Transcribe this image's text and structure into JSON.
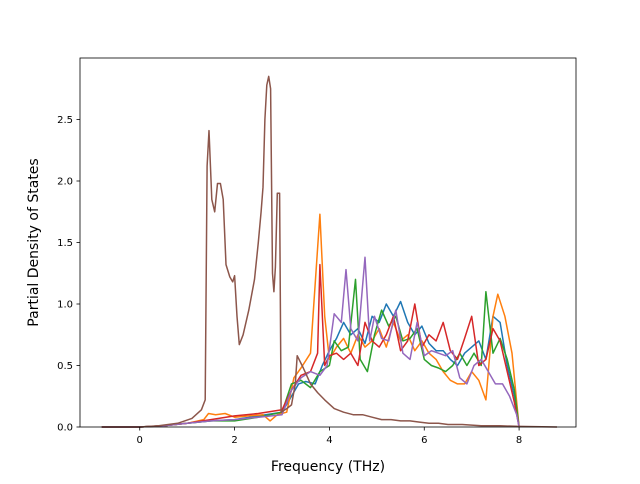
{
  "chart_data": {
    "type": "line",
    "title": "",
    "xlabel": "Frequency (THz)",
    "ylabel": "Partial Density of States",
    "xlim": [
      -1.26,
      9.2
    ],
    "ylim": [
      0.0,
      3.0
    ],
    "xticks": [
      0,
      2,
      4,
      6,
      8
    ],
    "yticks": [
      0.0,
      0.5,
      1.0,
      1.5,
      2.0,
      2.5
    ],
    "ytick_labels": [
      "0.0",
      "0.5",
      "1.0",
      "1.5",
      "2.0",
      "2.5"
    ],
    "grid": false,
    "legend": "none",
    "series": [
      {
        "color": "#1f77b4",
        "points": [
          [
            -0.8,
            0
          ],
          [
            0,
            0
          ],
          [
            0.5,
            0.01
          ],
          [
            1.0,
            0.03
          ],
          [
            1.5,
            0.05
          ],
          [
            2.0,
            0.06
          ],
          [
            2.5,
            0.09
          ],
          [
            3.0,
            0.12
          ],
          [
            3.2,
            0.25
          ],
          [
            3.35,
            0.35
          ],
          [
            3.5,
            0.37
          ],
          [
            3.7,
            0.35
          ],
          [
            3.85,
            0.5
          ],
          [
            4.0,
            0.62
          ],
          [
            4.15,
            0.72
          ],
          [
            4.3,
            0.85
          ],
          [
            4.45,
            0.75
          ],
          [
            4.6,
            0.8
          ],
          [
            4.75,
            0.68
          ],
          [
            4.9,
            0.9
          ],
          [
            5.05,
            0.85
          ],
          [
            5.2,
            1.0
          ],
          [
            5.35,
            0.9
          ],
          [
            5.5,
            1.02
          ],
          [
            5.65,
            0.85
          ],
          [
            5.8,
            0.75
          ],
          [
            5.95,
            0.82
          ],
          [
            6.1,
            0.68
          ],
          [
            6.25,
            0.62
          ],
          [
            6.4,
            0.62
          ],
          [
            6.55,
            0.55
          ],
          [
            6.7,
            0.5
          ],
          [
            6.85,
            0.6
          ],
          [
            7.0,
            0.65
          ],
          [
            7.15,
            0.7
          ],
          [
            7.3,
            0.55
          ],
          [
            7.45,
            0.9
          ],
          [
            7.6,
            0.85
          ],
          [
            7.75,
            0.5
          ],
          [
            7.9,
            0.25
          ],
          [
            8.0,
            0
          ]
        ]
      },
      {
        "color": "#ff7f0e",
        "points": [
          [
            -0.8,
            0
          ],
          [
            0,
            0
          ],
          [
            0.5,
            0.01
          ],
          [
            1.0,
            0.03
          ],
          [
            1.35,
            0.06
          ],
          [
            1.45,
            0.11
          ],
          [
            1.6,
            0.1
          ],
          [
            1.8,
            0.11
          ],
          [
            2.0,
            0.08
          ],
          [
            2.3,
            0.09
          ],
          [
            2.6,
            0.1
          ],
          [
            2.75,
            0.05
          ],
          [
            2.9,
            0.1
          ],
          [
            3.1,
            0.12
          ],
          [
            3.25,
            0.4
          ],
          [
            3.4,
            0.48
          ],
          [
            3.6,
            0.6
          ],
          [
            3.8,
            1.73
          ],
          [
            3.9,
            0.9
          ],
          [
            4.0,
            0.55
          ],
          [
            4.15,
            0.65
          ],
          [
            4.3,
            0.72
          ],
          [
            4.45,
            0.6
          ],
          [
            4.6,
            0.75
          ],
          [
            4.75,
            0.65
          ],
          [
            4.9,
            0.7
          ],
          [
            5.05,
            0.8
          ],
          [
            5.2,
            0.65
          ],
          [
            5.35,
            0.85
          ],
          [
            5.5,
            0.7
          ],
          [
            5.65,
            0.75
          ],
          [
            5.8,
            0.62
          ],
          [
            5.95,
            0.7
          ],
          [
            6.1,
            0.6
          ],
          [
            6.25,
            0.55
          ],
          [
            6.4,
            0.45
          ],
          [
            6.55,
            0.38
          ],
          [
            6.7,
            0.35
          ],
          [
            6.85,
            0.35
          ],
          [
            7.0,
            0.45
          ],
          [
            7.15,
            0.38
          ],
          [
            7.3,
            0.22
          ],
          [
            7.45,
            0.9
          ],
          [
            7.55,
            1.08
          ],
          [
            7.7,
            0.9
          ],
          [
            7.85,
            0.6
          ],
          [
            8.0,
            0
          ]
        ]
      },
      {
        "color": "#2ca02c",
        "points": [
          [
            -0.8,
            0
          ],
          [
            0,
            0
          ],
          [
            0.5,
            0.01
          ],
          [
            1.0,
            0.03
          ],
          [
            1.5,
            0.05
          ],
          [
            2.0,
            0.05
          ],
          [
            2.5,
            0.08
          ],
          [
            3.0,
            0.12
          ],
          [
            3.2,
            0.35
          ],
          [
            3.4,
            0.38
          ],
          [
            3.6,
            0.32
          ],
          [
            3.8,
            0.45
          ],
          [
            4.0,
            0.5
          ],
          [
            4.1,
            0.7
          ],
          [
            4.25,
            0.62
          ],
          [
            4.4,
            0.65
          ],
          [
            4.55,
            1.2
          ],
          [
            4.65,
            0.55
          ],
          [
            4.8,
            0.45
          ],
          [
            4.95,
            0.75
          ],
          [
            5.1,
            0.95
          ],
          [
            5.25,
            0.82
          ],
          [
            5.4,
            0.9
          ],
          [
            5.55,
            0.7
          ],
          [
            5.7,
            0.72
          ],
          [
            5.85,
            0.8
          ],
          [
            6.0,
            0.55
          ],
          [
            6.15,
            0.5
          ],
          [
            6.3,
            0.48
          ],
          [
            6.45,
            0.45
          ],
          [
            6.6,
            0.5
          ],
          [
            6.75,
            0.6
          ],
          [
            6.9,
            0.5
          ],
          [
            7.05,
            0.6
          ],
          [
            7.2,
            0.5
          ],
          [
            7.3,
            1.1
          ],
          [
            7.45,
            0.6
          ],
          [
            7.6,
            0.72
          ],
          [
            7.75,
            0.55
          ],
          [
            7.9,
            0.3
          ],
          [
            8.0,
            0
          ]
        ]
      },
      {
        "color": "#d62728",
        "points": [
          [
            -0.8,
            0
          ],
          [
            0,
            0
          ],
          [
            0.5,
            0.01
          ],
          [
            1.0,
            0.03
          ],
          [
            1.5,
            0.06
          ],
          [
            2.0,
            0.09
          ],
          [
            2.5,
            0.11
          ],
          [
            3.0,
            0.14
          ],
          [
            3.2,
            0.3
          ],
          [
            3.4,
            0.42
          ],
          [
            3.6,
            0.45
          ],
          [
            3.75,
            0.6
          ],
          [
            3.8,
            1.32
          ],
          [
            3.9,
            0.5
          ],
          [
            4.0,
            0.58
          ],
          [
            4.15,
            0.6
          ],
          [
            4.3,
            0.55
          ],
          [
            4.45,
            0.6
          ],
          [
            4.6,
            0.5
          ],
          [
            4.75,
            0.85
          ],
          [
            4.9,
            0.7
          ],
          [
            5.05,
            0.65
          ],
          [
            5.2,
            0.75
          ],
          [
            5.35,
            0.9
          ],
          [
            5.5,
            0.62
          ],
          [
            5.65,
            0.7
          ],
          [
            5.8,
            1.0
          ],
          [
            5.95,
            0.65
          ],
          [
            6.1,
            0.75
          ],
          [
            6.25,
            0.7
          ],
          [
            6.4,
            0.85
          ],
          [
            6.55,
            0.62
          ],
          [
            6.7,
            0.55
          ],
          [
            6.85,
            0.72
          ],
          [
            7.0,
            0.9
          ],
          [
            7.15,
            0.5
          ],
          [
            7.3,
            0.55
          ],
          [
            7.45,
            0.8
          ],
          [
            7.6,
            0.7
          ],
          [
            7.75,
            0.45
          ],
          [
            7.9,
            0.2
          ],
          [
            8.0,
            0
          ]
        ]
      },
      {
        "color": "#9467bd",
        "points": [
          [
            -0.8,
            0
          ],
          [
            0,
            0
          ],
          [
            0.5,
            0.01
          ],
          [
            1.0,
            0.03
          ],
          [
            1.5,
            0.05
          ],
          [
            2.0,
            0.06
          ],
          [
            2.5,
            0.08
          ],
          [
            3.0,
            0.1
          ],
          [
            3.2,
            0.3
          ],
          [
            3.4,
            0.4
          ],
          [
            3.6,
            0.45
          ],
          [
            3.8,
            0.42
          ],
          [
            3.95,
            0.5
          ],
          [
            4.1,
            0.92
          ],
          [
            4.25,
            0.85
          ],
          [
            4.35,
            1.28
          ],
          [
            4.45,
            0.8
          ],
          [
            4.6,
            0.7
          ],
          [
            4.75,
            1.38
          ],
          [
            4.85,
            0.7
          ],
          [
            4.95,
            0.9
          ],
          [
            5.1,
            0.72
          ],
          [
            5.25,
            0.7
          ],
          [
            5.4,
            0.95
          ],
          [
            5.55,
            0.6
          ],
          [
            5.7,
            0.55
          ],
          [
            5.85,
            0.85
          ],
          [
            6.0,
            0.58
          ],
          [
            6.15,
            0.62
          ],
          [
            6.3,
            0.6
          ],
          [
            6.45,
            0.58
          ],
          [
            6.6,
            0.62
          ],
          [
            6.75,
            0.4
          ],
          [
            6.9,
            0.35
          ],
          [
            7.05,
            0.5
          ],
          [
            7.2,
            0.55
          ],
          [
            7.35,
            0.45
          ],
          [
            7.5,
            0.35
          ],
          [
            7.65,
            0.35
          ],
          [
            7.8,
            0.25
          ],
          [
            7.95,
            0.1
          ],
          [
            8.0,
            0
          ]
        ]
      },
      {
        "color": "#8c564b",
        "points": [
          [
            -0.8,
            0
          ],
          [
            0,
            0
          ],
          [
            0.4,
            0.01
          ],
          [
            0.8,
            0.03
          ],
          [
            1.1,
            0.07
          ],
          [
            1.3,
            0.14
          ],
          [
            1.38,
            0.22
          ],
          [
            1.42,
            2.12
          ],
          [
            1.46,
            2.41
          ],
          [
            1.52,
            1.85
          ],
          [
            1.58,
            1.75
          ],
          [
            1.64,
            1.98
          ],
          [
            1.7,
            1.98
          ],
          [
            1.76,
            1.85
          ],
          [
            1.82,
            1.32
          ],
          [
            1.9,
            1.22
          ],
          [
            1.96,
            1.18
          ],
          [
            2.0,
            1.23
          ],
          [
            2.05,
            0.9
          ],
          [
            2.1,
            0.67
          ],
          [
            2.18,
            0.75
          ],
          [
            2.3,
            0.95
          ],
          [
            2.42,
            1.2
          ],
          [
            2.5,
            1.5
          ],
          [
            2.56,
            1.75
          ],
          [
            2.6,
            1.95
          ],
          [
            2.64,
            2.5
          ],
          [
            2.68,
            2.78
          ],
          [
            2.72,
            2.85
          ],
          [
            2.76,
            2.75
          ],
          [
            2.8,
            1.25
          ],
          [
            2.83,
            1.1
          ],
          [
            2.86,
            1.3
          ],
          [
            2.9,
            1.9
          ],
          [
            2.95,
            1.9
          ],
          [
            2.98,
            0.12
          ],
          [
            3.1,
            0.15
          ],
          [
            3.2,
            0.18
          ],
          [
            3.28,
            0.35
          ],
          [
            3.32,
            0.58
          ],
          [
            3.45,
            0.48
          ],
          [
            3.6,
            0.35
          ],
          [
            3.75,
            0.28
          ],
          [
            3.9,
            0.22
          ],
          [
            4.1,
            0.15
          ],
          [
            4.3,
            0.12
          ],
          [
            4.5,
            0.1
          ],
          [
            4.7,
            0.1
          ],
          [
            4.9,
            0.08
          ],
          [
            5.1,
            0.06
          ],
          [
            5.3,
            0.06
          ],
          [
            5.5,
            0.05
          ],
          [
            5.7,
            0.05
          ],
          [
            5.9,
            0.04
          ],
          [
            6.1,
            0.03
          ],
          [
            6.3,
            0.03
          ],
          [
            6.5,
            0.02
          ],
          [
            6.8,
            0.02
          ],
          [
            7.2,
            0.01
          ],
          [
            7.6,
            0.01
          ],
          [
            8.0,
            0.005
          ],
          [
            8.8,
            0
          ]
        ]
      }
    ]
  }
}
